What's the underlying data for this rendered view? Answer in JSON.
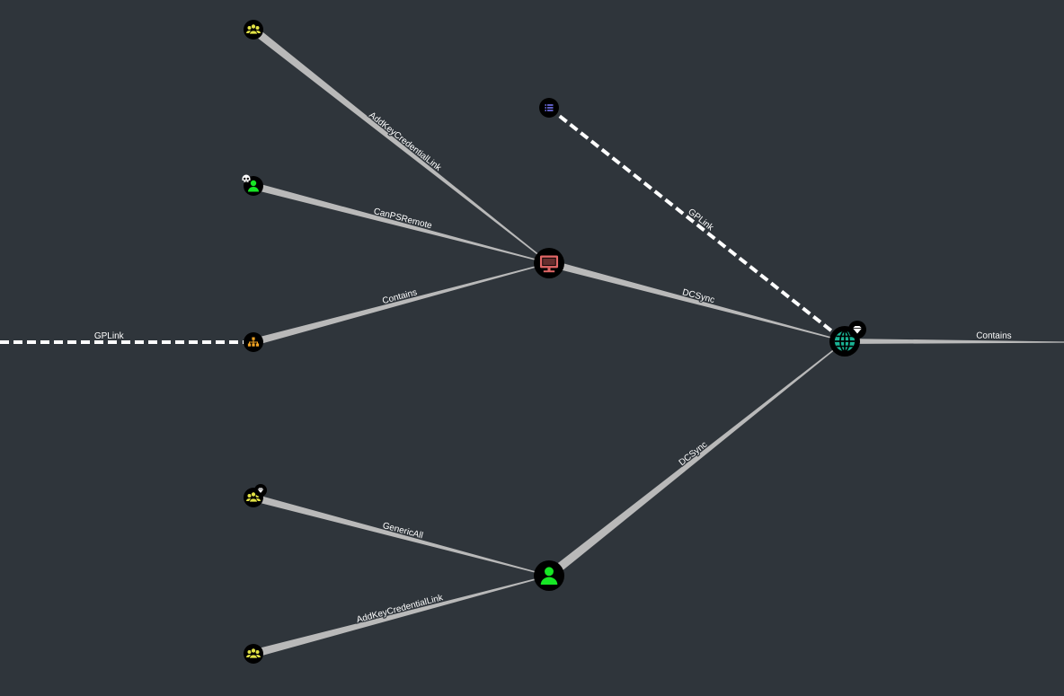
{
  "colors": {
    "background": "#2f353b",
    "edge": "#b9b9b9",
    "dashed_edge": "#ffffff",
    "label": "#ffffff",
    "node_fill": "#000000",
    "group": "#e3e345",
    "user": "#17e625",
    "computer": "#e06666",
    "ou": "#f5a623",
    "domain": "#1ab394",
    "gpo": "#7b7bff",
    "badge": "#ffffff"
  },
  "nodes": [
    {
      "id": "group1",
      "kind": "group",
      "icon": "group-icon",
      "badge": ""
    },
    {
      "id": "user1",
      "kind": "user",
      "icon": "user-icon",
      "badge": "skull-badge-icon"
    },
    {
      "id": "ou1",
      "kind": "ou",
      "icon": "sitemap-icon",
      "badge": ""
    },
    {
      "id": "computer1",
      "kind": "computer",
      "icon": "monitor-icon",
      "badge": ""
    },
    {
      "id": "gpo1",
      "kind": "gpo",
      "icon": "list-icon",
      "badge": ""
    },
    {
      "id": "domain1",
      "kind": "domain",
      "icon": "globe-icon",
      "badge": "gem-badge-icon"
    },
    {
      "id": "group2",
      "kind": "group",
      "icon": "group-icon",
      "badge": "gem-badge-icon"
    },
    {
      "id": "user2",
      "kind": "user",
      "icon": "user-icon",
      "badge": ""
    },
    {
      "id": "group3",
      "kind": "group",
      "icon": "group-icon",
      "badge": ""
    }
  ],
  "edges": [
    {
      "label": "AddKeyCredentialLink",
      "style": "solid"
    },
    {
      "label": "CanPSRemote",
      "style": "solid"
    },
    {
      "label": "Contains",
      "style": "solid"
    },
    {
      "label": "GPLink",
      "style": "dashed"
    },
    {
      "label": "DCSync",
      "style": "solid"
    },
    {
      "label": "GPLink",
      "style": "dashed"
    },
    {
      "label": "Contains",
      "style": "solid"
    },
    {
      "label": "GenericAll",
      "style": "solid"
    },
    {
      "label": "AddKeyCredentialLink",
      "style": "solid"
    },
    {
      "label": "DCSync",
      "style": "solid"
    }
  ]
}
